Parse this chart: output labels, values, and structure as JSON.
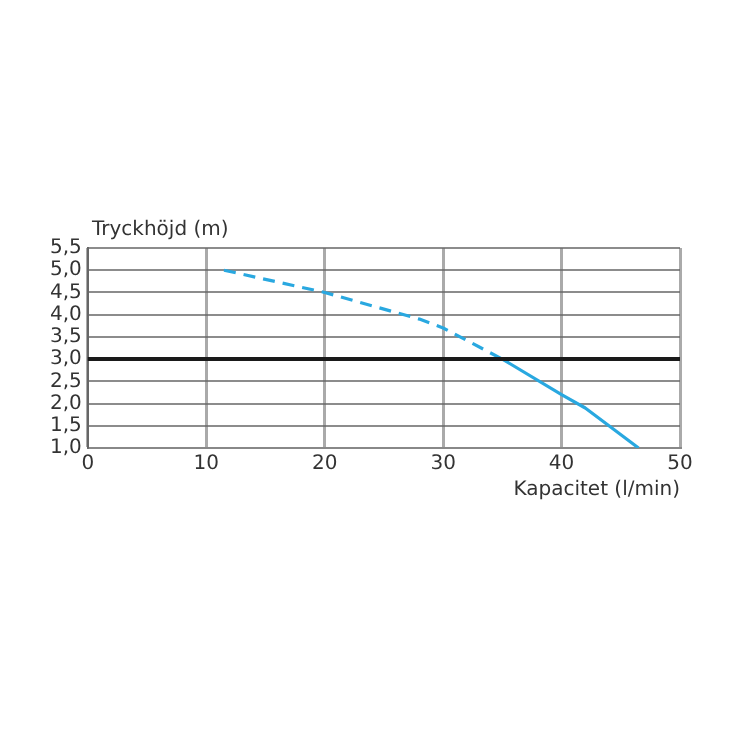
{
  "chart_data": {
    "type": "line",
    "xlabel": "Kapacitet (l/min)",
    "ylabel": "Tryckhöjd (m)",
    "xlim": [
      0,
      50
    ],
    "xticks": [
      0,
      10,
      20,
      30,
      40,
      50
    ],
    "ylim": [
      1,
      5.5
    ],
    "yticks": [
      {
        "value": 1,
        "label": "1,0"
      },
      {
        "value": 1.5,
        "label": "1,5"
      },
      {
        "value": 2,
        "label": "2,0"
      },
      {
        "value": 2.5,
        "label": "2,5"
      },
      {
        "value": 3,
        "label": "3,0"
      },
      {
        "value": 3.5,
        "label": "3,5"
      },
      {
        "value": 4,
        "label": "4,0"
      },
      {
        "value": 4.5,
        "label": "4,5"
      },
      {
        "value": 5,
        "label": "5,0"
      },
      {
        "value": 5.5,
        "label": "5,5"
      }
    ],
    "grid": true,
    "marker": "none",
    "legend": false,
    "ref_lines": [
      {
        "axis": "y",
        "value": 3,
        "color": "#1a1a1a"
      }
    ],
    "series": [
      {
        "color": "#29a8e0",
        "line_style": "dashed",
        "x": [
          11.5,
          20,
          28,
          30,
          35
        ],
        "values": [
          5.0,
          4.5,
          3.9,
          3.7,
          3.0
        ]
      },
      {
        "color": "#29a8e0",
        "line_style": "solid",
        "x": [
          35,
          40,
          42,
          44,
          46.5
        ],
        "values": [
          3.0,
          2.2,
          1.9,
          1.5,
          1.0
        ]
      }
    ]
  }
}
